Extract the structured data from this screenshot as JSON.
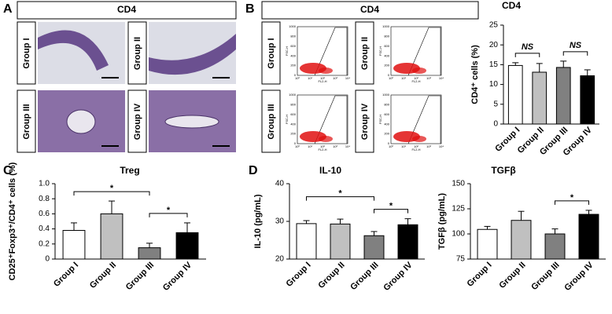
{
  "panel_labels": {
    "a": "A",
    "b": "B",
    "c": "C",
    "d": "D"
  },
  "histology": {
    "title": "CD4",
    "groups": [
      "Group I",
      "Group II",
      "Group III",
      "Group IV"
    ]
  },
  "flow": {
    "title": "CD4",
    "groups": [
      "Group I",
      "Group II",
      "Group III",
      "Group IV"
    ],
    "y_axis_label": "FSC-H",
    "x_axis_label": "FL2-H",
    "yticks": [
      0,
      200,
      400,
      600,
      800,
      1000
    ],
    "xticks": [
      "10⁰",
      "10¹",
      "10²",
      "10³",
      "10⁴"
    ]
  },
  "chart_data": [
    {
      "type": "bar",
      "title": "CD4",
      "y_label": "CD4⁺ cells (%)",
      "categories": [
        "Group I",
        "Group II",
        "Group III",
        "Group IV"
      ],
      "values": [
        14.8,
        13.1,
        14.3,
        12.2
      ],
      "errors": [
        0.7,
        2.2,
        1.6,
        1.5
      ],
      "colors": [
        "#ffffff",
        "#c0c0c0",
        "#808080",
        "#000000"
      ],
      "ylim": [
        0,
        25
      ],
      "yticks": [
        0,
        5,
        10,
        15,
        20,
        25
      ],
      "annotations": [
        {
          "text": "NS",
          "groups": [
            0,
            1
          ]
        },
        {
          "text": "NS",
          "groups": [
            2,
            3
          ]
        }
      ]
    },
    {
      "type": "bar",
      "title": "Treg",
      "y_label": "CD25⁺Foxp3⁺/CD4⁺ cells (%)",
      "categories": [
        "Group I",
        "Group II",
        "Group III",
        "Group IV"
      ],
      "values": [
        0.38,
        0.6,
        0.15,
        0.35
      ],
      "errors": [
        0.1,
        0.17,
        0.06,
        0.13
      ],
      "colors": [
        "#ffffff",
        "#c0c0c0",
        "#808080",
        "#000000"
      ],
      "ylim": [
        0,
        1
      ],
      "yticks": [
        0,
        0.2,
        0.4,
        0.6,
        0.8,
        {
          "value": 1,
          "label": "1.0"
        }
      ],
      "annotations": [
        {
          "text": "*",
          "groups": [
            2,
            3
          ]
        },
        {
          "text": "*",
          "groups": [
            0,
            2
          ]
        }
      ]
    },
    {
      "type": "bar",
      "title": "IL-10",
      "y_label": "IL-10 (pg/mL)",
      "categories": [
        "Group I",
        "Group II",
        "Group III",
        "Group IV"
      ],
      "values": [
        29.4,
        29.3,
        26.2,
        29.1
      ],
      "errors": [
        0.8,
        1.3,
        1.1,
        1.6
      ],
      "colors": [
        "#ffffff",
        "#c0c0c0",
        "#808080",
        "#000000"
      ],
      "ylim": [
        20,
        40
      ],
      "yticks": [
        20,
        30,
        40
      ],
      "annotations": [
        {
          "text": "*",
          "groups": [
            2,
            3
          ]
        },
        {
          "text": "*",
          "groups": [
            0,
            2
          ]
        }
      ]
    },
    {
      "type": "bar",
      "title": "TGFβ",
      "y_label": "TGFβ (pg/mL)",
      "categories": [
        "Group I",
        "Group II",
        "Group III",
        "Group IV"
      ],
      "values": [
        104.5,
        113.5,
        100,
        119.5
      ],
      "errors": [
        3,
        9,
        5,
        4
      ],
      "colors": [
        "#ffffff",
        "#c0c0c0",
        "#808080",
        "#000000"
      ],
      "ylim": [
        75,
        150
      ],
      "yticks": [
        75,
        100,
        125,
        150
      ],
      "annotations": [
        {
          "text": "*",
          "groups": [
            2,
            3
          ]
        }
      ]
    }
  ]
}
